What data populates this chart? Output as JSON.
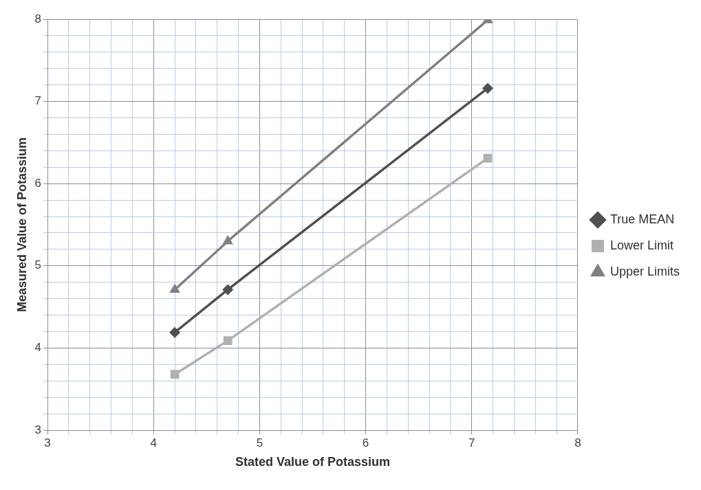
{
  "chart_data": {
    "type": "line",
    "xlabel": "Stated Value of Potassium",
    "ylabel": "Measured Value of Potassium",
    "x": [
      4.2,
      4.7,
      7.15
    ],
    "series": [
      {
        "name": "True MEAN",
        "color": "#505050",
        "marker": "diamond",
        "values": [
          4.19,
          4.71,
          7.16
        ]
      },
      {
        "name": "Lower Limit",
        "color": "#b0b0b0",
        "marker": "square",
        "values": [
          3.68,
          4.09,
          6.31
        ]
      },
      {
        "name": "Upper Limits",
        "color": "#808080",
        "marker": "triangle",
        "values": [
          4.71,
          5.3,
          7.99
        ]
      }
    ],
    "xlim": [
      3,
      8
    ],
    "ylim": [
      3,
      8
    ],
    "xticks": [
      3,
      {
        "value": 3.2,
        "label": null
      },
      {
        "value": 3.4,
        "label": null
      },
      {
        "value": 3.6,
        "label": null
      },
      {
        "value": 3.8,
        "label": null
      },
      4,
      {
        "value": 4.2,
        "label": null
      },
      {
        "value": 4.4,
        "label": null
      },
      {
        "value": 4.6,
        "label": null
      },
      {
        "value": 4.8,
        "label": null
      },
      5,
      {
        "value": 5.2,
        "label": null
      },
      {
        "value": 5.4,
        "label": null
      },
      {
        "value": 5.6,
        "label": null
      },
      {
        "value": 5.8,
        "label": null
      },
      6,
      {
        "value": 6.2,
        "label": null
      },
      {
        "value": 6.4,
        "label": null
      },
      {
        "value": 6.6,
        "label": null
      },
      {
        "value": 6.8,
        "label": null
      },
      7,
      {
        "value": 7.2,
        "label": null
      },
      {
        "value": 7.4,
        "label": null
      },
      {
        "value": 7.6,
        "label": null
      },
      {
        "value": 7.8,
        "label": null
      },
      8
    ],
    "yticks": [
      3,
      {
        "value": 3.2,
        "label": null
      },
      {
        "value": 3.4,
        "label": null
      },
      {
        "value": 3.6,
        "label": null
      },
      {
        "value": 3.8,
        "label": null
      },
      4,
      {
        "value": 4.2,
        "label": null
      },
      {
        "value": 4.4,
        "label": null
      },
      {
        "value": 4.6,
        "label": null
      },
      {
        "value": 4.8,
        "label": null
      },
      5,
      {
        "value": 5.2,
        "label": null
      },
      {
        "value": 5.4,
        "label": null
      },
      {
        "value": 5.6,
        "label": null
      },
      {
        "value": 5.8,
        "label": null
      },
      6,
      {
        "value": 6.2,
        "label": null
      },
      {
        "value": 6.4,
        "label": null
      },
      {
        "value": 6.6,
        "label": null
      },
      {
        "value": 6.8,
        "label": null
      },
      7,
      {
        "value": 7.2,
        "label": null
      },
      {
        "value": 7.4,
        "label": null
      },
      {
        "value": 7.6,
        "label": null
      },
      {
        "value": 7.8,
        "label": null
      },
      8
    ],
    "grid": true,
    "legend": "right",
    "line_style": "solid"
  }
}
